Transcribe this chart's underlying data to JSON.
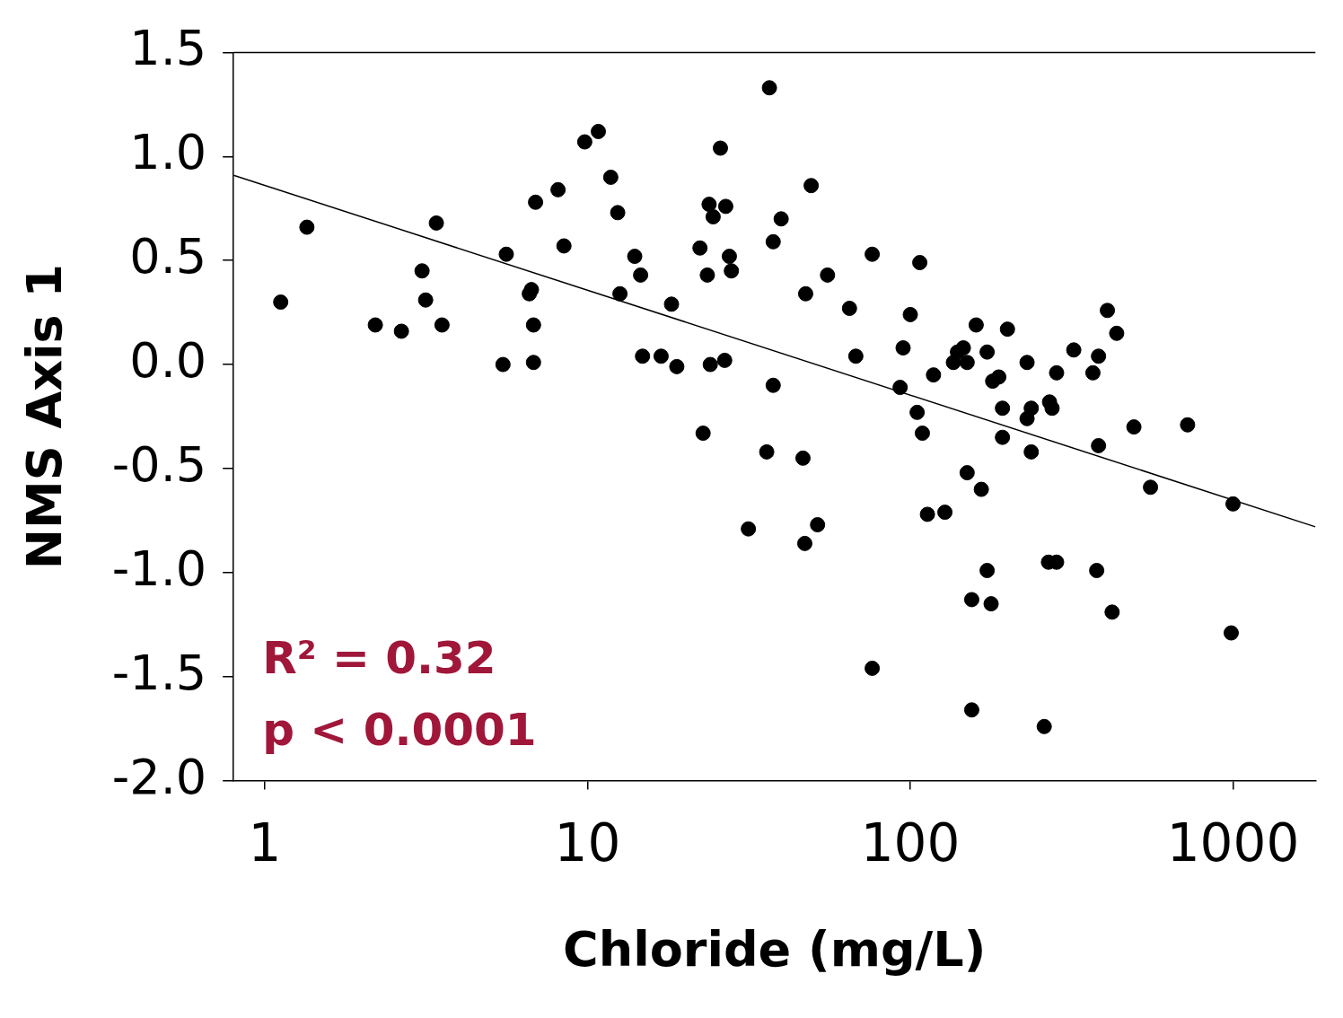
{
  "chart_data": {
    "type": "scatter",
    "xlabel": "Chloride (mg/L)",
    "ylabel": "NMS Axis 1",
    "log": "x",
    "xlim": [
      0.8,
      1800
    ],
    "xticks": [
      1,
      10,
      100,
      1000
    ],
    "ylim": [
      -2,
      1.5
    ],
    "yticks": [
      {
        "value": -2,
        "label": "-2.0"
      },
      {
        "value": -1.5,
        "label": "-1.5"
      },
      {
        "value": -1,
        "label": "-1.0"
      },
      {
        "value": -0.5,
        "label": "-0.5"
      },
      {
        "value": 0,
        "label": "0.0"
      },
      {
        "value": 0.5,
        "label": "0.5"
      },
      {
        "value": 1,
        "label": "1.0"
      },
      {
        "value": 1.5,
        "label": "1.5"
      }
    ],
    "grid": false,
    "legend": false,
    "marker": "circle",
    "annotations": [
      "R² = 0.32",
      "p < 0.0001"
    ],
    "series": [
      {
        "type": "scatter",
        "color": "#000000",
        "x": [
          1.12,
          1.35,
          2.2,
          2.65,
          3.07,
          3.15,
          3.4,
          3.54,
          5.47,
          5.6,
          6.6,
          6.7,
          6.8,
          6.8,
          6.9,
          8.1,
          8.45,
          9.8,
          10.8,
          11.8,
          12.4,
          12.6,
          14.0,
          14.6,
          14.8,
          16.9,
          18.2,
          18.9,
          22.3,
          22.8,
          23.5,
          23.8,
          24.5,
          24,
          25.8,
          26.8,
          26.6,
          27.5,
          27.9,
          31.5,
          35.9,
          36.6,
          37.6,
          37.6,
          39.8,
          46.5,
          47.1,
          47.4,
          49.3,
          51.6,
          55.4,
          64.8,
          67.8,
          76.2,
          76.2,
          93,
          95,
          100,
          105,
          107,
          109,
          113,
          118,
          128,
          136,
          140,
          146,
          150,
          150,
          155,
          155,
          160,
          166,
          173,
          173,
          178,
          180,
          188,
          193,
          193,
          200,
          230,
          230,
          237,
          237,
          260,
          268,
          270,
          275,
          284,
          284,
          321,
          368,
          378,
          383,
          383,
          408,
          422,
          436,
          493,
          555,
          723,
          987,
          1000
        ],
        "values": [
          0.3,
          0.66,
          0.19,
          0.16,
          0.45,
          0.31,
          0.68,
          0.19,
          0.0,
          0.53,
          0.34,
          0.36,
          0.19,
          0.01,
          0.78,
          0.84,
          0.57,
          1.07,
          1.12,
          0.9,
          0.73,
          0.34,
          0.52,
          0.43,
          0.04,
          0.04,
          0.29,
          -0.01,
          0.56,
          -0.33,
          0.43,
          0.77,
          0.71,
          0.0,
          1.04,
          0.76,
          0.02,
          0.52,
          0.45,
          -0.79,
          -0.42,
          1.33,
          0.59,
          -0.1,
          0.7,
          -0.45,
          -0.86,
          0.34,
          0.86,
          -0.77,
          0.43,
          0.27,
          0.04,
          0.53,
          -1.46,
          -0.11,
          0.08,
          0.24,
          -0.23,
          0.49,
          -0.33,
          -0.72,
          -0.05,
          -0.71,
          0.01,
          0.06,
          0.08,
          0.01,
          -0.52,
          -1.13,
          -1.66,
          0.19,
          -0.6,
          -0.99,
          0.06,
          -1.15,
          -0.08,
          -0.06,
          -0.21,
          -0.35,
          0.17,
          0.01,
          -0.26,
          -0.21,
          -0.42,
          -1.74,
          -0.95,
          -0.18,
          -0.21,
          -0.95,
          -0.04,
          0.07,
          -0.04,
          -0.99,
          0.04,
          -0.39,
          0.26,
          -1.19,
          0.15,
          -0.3,
          -0.59,
          -0.29,
          -1.29,
          -0.67
        ]
      },
      {
        "type": "line",
        "color": "#000000",
        "marker": "none",
        "x": [
          0.8,
          1800
        ],
        "values": [
          0.91,
          -0.78
        ]
      }
    ]
  }
}
